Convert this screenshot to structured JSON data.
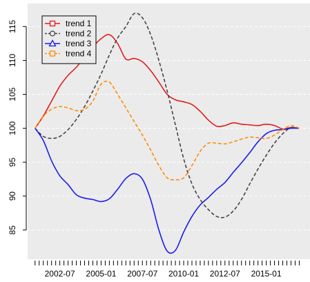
{
  "chart_data": {
    "type": "line",
    "title": "",
    "xlabel": "",
    "ylabel": "",
    "background": "#ebebeb",
    "x_tick_labels": [
      "2002-07",
      "2005-01",
      "2007-07",
      "2010-01",
      "2012-07",
      "2015-01"
    ],
    "x_tick_positions": [
      2002.5,
      2005.0,
      2007.5,
      2010.0,
      2012.5,
      2015.0
    ],
    "xlim": [
      2000.55,
      2017.65
    ],
    "ylim": [
      80.7,
      118.4
    ],
    "y_ticks": [
      85,
      90,
      95,
      100,
      105,
      110,
      115
    ],
    "grid": "horizontal dashed white",
    "legend_position": "top-left",
    "series": [
      {
        "name": "trend 1",
        "color": "#e41a1c",
        "dash": "solid",
        "marker": "square",
        "x": [
          2001.0,
          2001.5,
          2002.0,
          2002.5,
          2003.0,
          2003.5,
          2004.0,
          2004.5,
          2005.0,
          2005.5,
          2006.0,
          2006.5,
          2007.0,
          2007.5,
          2008.0,
          2008.5,
          2009.0,
          2009.5,
          2010.0,
          2010.5,
          2011.0,
          2011.5,
          2012.0,
          2012.5,
          2013.0,
          2013.5,
          2014.0,
          2014.5,
          2015.0,
          2015.5,
          2016.0,
          2016.5,
          2017.0
        ],
        "y": [
          100.0,
          101.8,
          104.0,
          106.2,
          107.8,
          109.0,
          110.5,
          112.0,
          113.2,
          113.8,
          112.5,
          110.2,
          110.3,
          109.8,
          108.5,
          106.8,
          105.0,
          104.2,
          103.9,
          103.5,
          102.5,
          101.2,
          100.3,
          100.4,
          100.8,
          100.6,
          100.5,
          100.4,
          100.6,
          100.4,
          99.9,
          100.1,
          100.0
        ]
      },
      {
        "name": "trend 2",
        "color": "#444444",
        "dash": "dashed",
        "marker": "circle",
        "x": [
          2001.0,
          2001.5,
          2002.0,
          2002.5,
          2003.0,
          2003.5,
          2004.0,
          2004.5,
          2005.0,
          2005.5,
          2006.0,
          2006.5,
          2007.0,
          2007.5,
          2008.0,
          2008.5,
          2009.0,
          2009.5,
          2010.0,
          2010.5,
          2011.0,
          2011.5,
          2012.0,
          2012.5,
          2013.0,
          2013.5,
          2014.0,
          2014.5,
          2015.0,
          2015.5,
          2016.0,
          2016.5,
          2017.0
        ],
        "y": [
          100.0,
          98.8,
          98.5,
          98.8,
          99.8,
          101.3,
          103.2,
          105.5,
          108.0,
          110.8,
          113.3,
          115.0,
          116.9,
          116.3,
          113.8,
          110.0,
          105.5,
          100.5,
          95.5,
          91.8,
          89.5,
          88.0,
          87.0,
          86.9,
          87.8,
          89.5,
          91.8,
          94.0,
          96.0,
          97.8,
          99.2,
          100.1,
          100.0
        ]
      },
      {
        "name": "trend 3",
        "color": "#1a1aee",
        "dash": "solid",
        "marker": "triangle",
        "x": [
          2001.0,
          2001.5,
          2002.0,
          2002.5,
          2003.0,
          2003.5,
          2004.0,
          2004.5,
          2005.0,
          2005.5,
          2006.0,
          2006.5,
          2007.0,
          2007.5,
          2008.0,
          2008.5,
          2009.0,
          2009.5,
          2010.0,
          2010.5,
          2011.0,
          2011.5,
          2012.0,
          2012.5,
          2013.0,
          2013.5,
          2014.0,
          2014.5,
          2015.0,
          2015.5,
          2016.0,
          2016.5,
          2017.0
        ],
        "y": [
          100.0,
          98.2,
          95.2,
          93.0,
          91.7,
          90.2,
          89.7,
          89.5,
          89.2,
          89.6,
          91.0,
          92.6,
          93.3,
          92.5,
          89.5,
          85.0,
          81.9,
          82.0,
          84.7,
          87.0,
          88.7,
          89.8,
          91.0,
          92.0,
          93.5,
          94.9,
          96.4,
          98.0,
          99.2,
          99.7,
          99.8,
          100.0,
          100.0
        ]
      },
      {
        "name": "trend 4",
        "color": "#ff8c00",
        "dash": "dashed",
        "marker": "square",
        "x": [
          2001.0,
          2001.5,
          2002.0,
          2002.5,
          2003.0,
          2003.5,
          2004.0,
          2004.5,
          2005.0,
          2005.5,
          2006.0,
          2006.5,
          2007.0,
          2007.5,
          2008.0,
          2008.5,
          2009.0,
          2009.5,
          2010.0,
          2010.5,
          2011.0,
          2011.5,
          2012.0,
          2012.5,
          2013.0,
          2013.5,
          2014.0,
          2014.5,
          2015.0,
          2015.5,
          2016.0,
          2016.5,
          2017.0
        ],
        "y": [
          100.0,
          101.8,
          102.8,
          103.2,
          103.0,
          102.6,
          102.8,
          104.0,
          106.5,
          106.8,
          105.0,
          103.0,
          101.0,
          99.0,
          96.8,
          94.5,
          92.7,
          92.4,
          92.7,
          94.5,
          96.6,
          97.8,
          97.8,
          97.7,
          98.0,
          98.4,
          98.7,
          98.6,
          98.5,
          99.0,
          99.8,
          100.4,
          100.0
        ]
      }
    ]
  }
}
